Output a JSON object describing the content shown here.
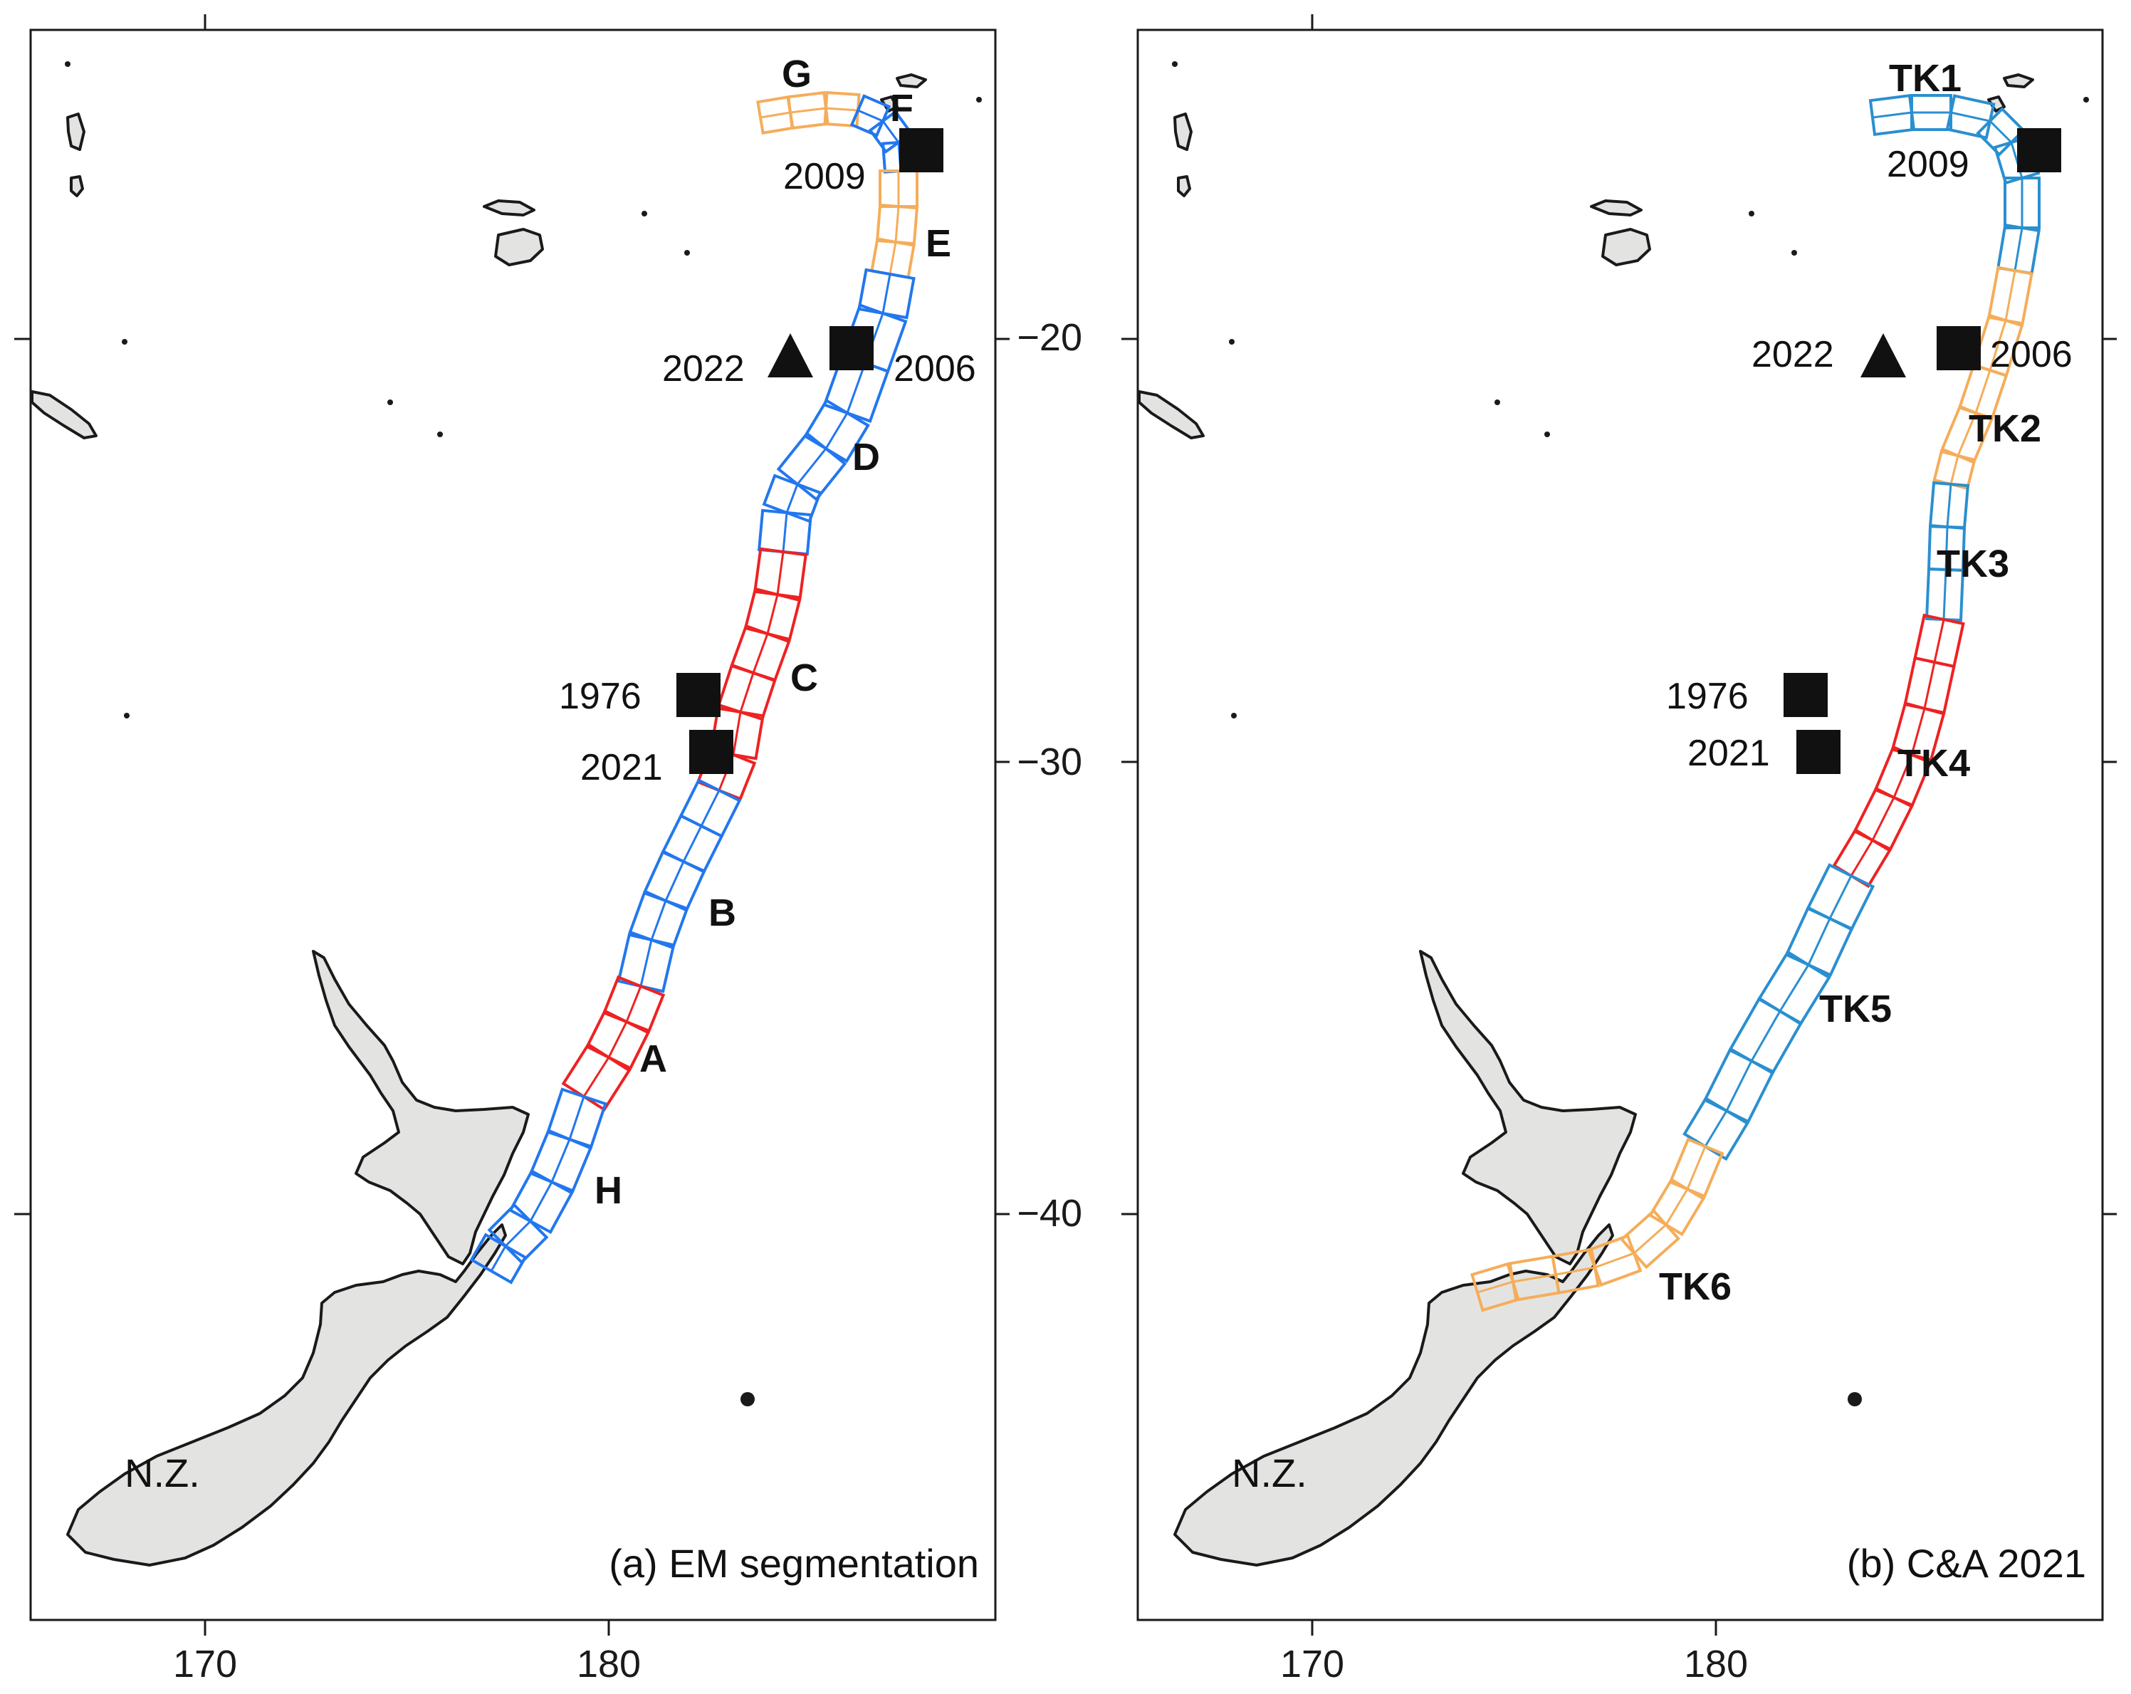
{
  "colors": {
    "red": "#ee2222",
    "blue": "#2277ee",
    "cyan": "#2a8fd0",
    "orange": "#f5ad5a",
    "land": "#e3e4e2",
    "ink": "#111111"
  },
  "axes": {
    "x_ticks": [
      "170",
      "180"
    ],
    "y_ticks": [
      "−20",
      "−30",
      "−40"
    ]
  },
  "panel_a": {
    "caption": "(a) EM segmentation",
    "nz_label": "N.Z.",
    "segments": [
      {
        "label": "G",
        "color": "orange"
      },
      {
        "label": "F",
        "color": "blue"
      },
      {
        "label": "E",
        "color": "orange"
      },
      {
        "label": "D",
        "color": "blue"
      },
      {
        "label": "C",
        "color": "red"
      },
      {
        "label": "B",
        "color": "blue"
      },
      {
        "label": "A",
        "color": "red"
      },
      {
        "label": "H",
        "color": "blue"
      }
    ],
    "events": [
      {
        "year": "2009",
        "symbol": "square"
      },
      {
        "year": "2006",
        "symbol": "square"
      },
      {
        "year": "2022",
        "symbol": "triangle"
      },
      {
        "year": "1976",
        "symbol": "square"
      },
      {
        "year": "2021",
        "symbol": "square"
      }
    ]
  },
  "panel_b": {
    "caption": "(b) C&A 2021",
    "nz_label": "N.Z.",
    "segments": [
      {
        "label": "TK1",
        "color": "cyan"
      },
      {
        "label": "TK2",
        "color": "orange"
      },
      {
        "label": "TK3",
        "color": "cyan"
      },
      {
        "label": "TK4",
        "color": "red"
      },
      {
        "label": "TK5",
        "color": "cyan"
      },
      {
        "label": "TK6",
        "color": "orange"
      }
    ],
    "events": [
      {
        "year": "2009",
        "symbol": "square"
      },
      {
        "year": "2006",
        "symbol": "square"
      },
      {
        "year": "2022",
        "symbol": "triangle"
      },
      {
        "year": "1976",
        "symbol": "square"
      },
      {
        "year": "2021",
        "symbol": "square"
      }
    ]
  }
}
